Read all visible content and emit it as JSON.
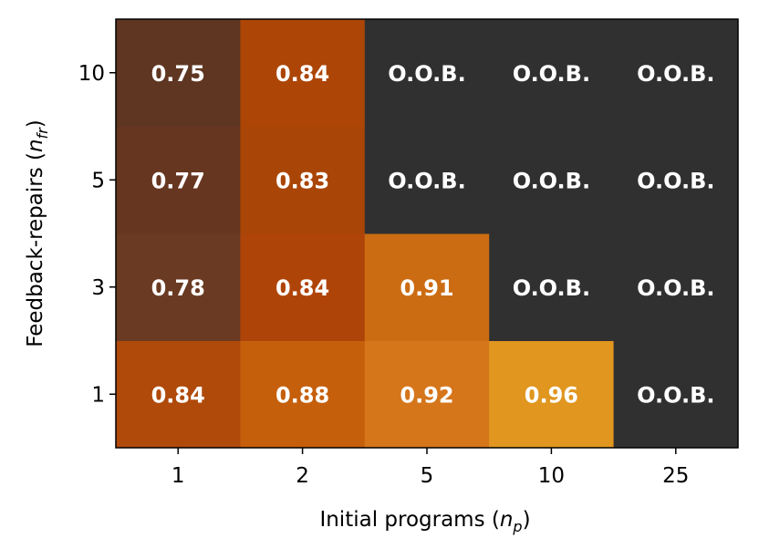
{
  "chart_data": {
    "type": "heatmap",
    "title": "",
    "x_ticks": [
      "1",
      "2",
      "5",
      "10",
      "25"
    ],
    "y_ticks": [
      "1",
      "3",
      "5",
      "10"
    ],
    "xlabel": {
      "text": "Initial programs (",
      "var": "n",
      "sub": "p",
      "close": ")"
    },
    "ylabel": {
      "text": "Feedback-repairs (",
      "var": "n",
      "sub": "fr",
      "close": ")"
    },
    "cells": [
      [
        {
          "label": "0.84",
          "color": "#b04a0b"
        },
        {
          "label": "0.88",
          "color": "#c55f0c"
        },
        {
          "label": "0.92",
          "color": "#d5761b"
        },
        {
          "label": "0.96",
          "color": "#e0961f"
        },
        {
          "label": "O.O.B.",
          "color": "#303030"
        }
      ],
      [
        {
          "label": "0.78",
          "color": "#6a3a22"
        },
        {
          "label": "0.84",
          "color": "#af4409"
        },
        {
          "label": "0.91",
          "color": "#cc6c12"
        },
        {
          "label": "O.O.B.",
          "color": "#303030"
        },
        {
          "label": "O.O.B.",
          "color": "#303030"
        }
      ],
      [
        {
          "label": "0.77",
          "color": "#673620"
        },
        {
          "label": "0.83",
          "color": "#a94506"
        },
        {
          "label": "O.O.B.",
          "color": "#303030"
        },
        {
          "label": "O.O.B.",
          "color": "#303030"
        },
        {
          "label": "O.O.B.",
          "color": "#303030"
        }
      ],
      [
        {
          "label": "0.75",
          "color": "#5f3622"
        },
        {
          "label": "0.84",
          "color": "#ac4505"
        },
        {
          "label": "O.O.B.",
          "color": "#303030"
        },
        {
          "label": "O.O.B.",
          "color": "#303030"
        },
        {
          "label": "O.O.B.",
          "color": "#303030"
        }
      ]
    ]
  }
}
